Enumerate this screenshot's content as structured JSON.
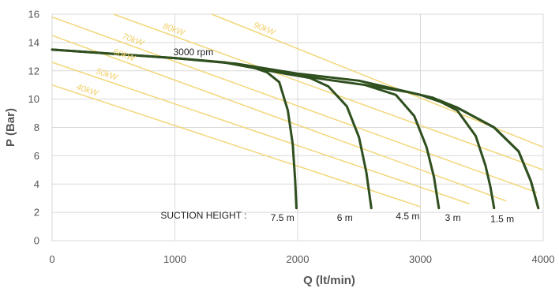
{
  "chart_data": {
    "type": "line",
    "xlabel": "Q (lt/min)",
    "ylabel": "P (Bar)",
    "xlim": [
      0,
      4000
    ],
    "ylim": [
      0,
      16
    ],
    "x_ticks": [
      0,
      1000,
      2000,
      3000,
      4000
    ],
    "y_ticks": [
      0,
      2,
      4,
      6,
      8,
      10,
      12,
      14,
      16
    ],
    "grid": true,
    "colors": {
      "curve": "#2f4f1f",
      "power": "#f2d77a",
      "grid": "#d9d9d9"
    },
    "speed_label": "3000 rpm",
    "suction_label": "SUCTION HEIGHT :",
    "base_curve": {
      "x": [
        0,
        500,
        1000,
        1500,
        2000,
        2500,
        3000,
        3300,
        3600,
        3800,
        3900,
        3960
      ],
      "y": [
        13.5,
        13.2,
        12.9,
        12.5,
        11.8,
        11.3,
        10.3,
        9.4,
        8.0,
        6.3,
        4.2,
        2.3
      ]
    },
    "series": [
      {
        "name": "7.5 m",
        "x": [
          0,
          500,
          1000,
          1400,
          1650,
          1750,
          1850,
          1920,
          1960,
          1980,
          1990
        ],
        "y": [
          13.5,
          13.2,
          12.9,
          12.6,
          12.2,
          11.9,
          11.2,
          9.2,
          6.8,
          4.2,
          2.3
        ]
      },
      {
        "name": "6 m",
        "x": [
          1400,
          1900,
          2100,
          2250,
          2400,
          2500,
          2560,
          2600
        ],
        "y": [
          12.6,
          11.8,
          11.5,
          10.9,
          9.5,
          7.3,
          4.8,
          2.3
        ]
      },
      {
        "name": "4.5 m",
        "x": [
          1900,
          2300,
          2550,
          2800,
          2950,
          3050,
          3110,
          3150
        ],
        "y": [
          11.8,
          11.3,
          11.0,
          10.3,
          8.8,
          6.6,
          4.5,
          2.3
        ]
      },
      {
        "name": "3 m",
        "x": [
          2550,
          2900,
          3100,
          3300,
          3450,
          3530,
          3570,
          3600
        ],
        "y": [
          11.0,
          10.5,
          10.1,
          9.2,
          7.4,
          5.3,
          3.8,
          2.3
        ]
      },
      {
        "name": "1.5 m",
        "x": [
          3100,
          3300,
          3600,
          3800,
          3900,
          3960
        ],
        "y": [
          10.1,
          9.4,
          8.0,
          6.3,
          4.2,
          2.3
        ]
      }
    ],
    "power_lines": [
      {
        "name": "40kW",
        "x": [
          0,
          3000
        ],
        "y": [
          11.0,
          2.4
        ]
      },
      {
        "name": "50kW",
        "x": [
          0,
          3400
        ],
        "y": [
          12.6,
          2.6
        ]
      },
      {
        "name": "60kW",
        "x": [
          0,
          3700
        ],
        "y": [
          14.5,
          2.8
        ]
      },
      {
        "name": "70kW",
        "x": [
          0,
          3950
        ],
        "y": [
          15.8,
          3.4
        ]
      },
      {
        "name": "80kW",
        "x": [
          500,
          4000
        ],
        "y": [
          16.0,
          5.0
        ]
      },
      {
        "name": "90kW",
        "x": [
          1300,
          4000
        ],
        "y": [
          16.0,
          6.6
        ]
      }
    ]
  }
}
